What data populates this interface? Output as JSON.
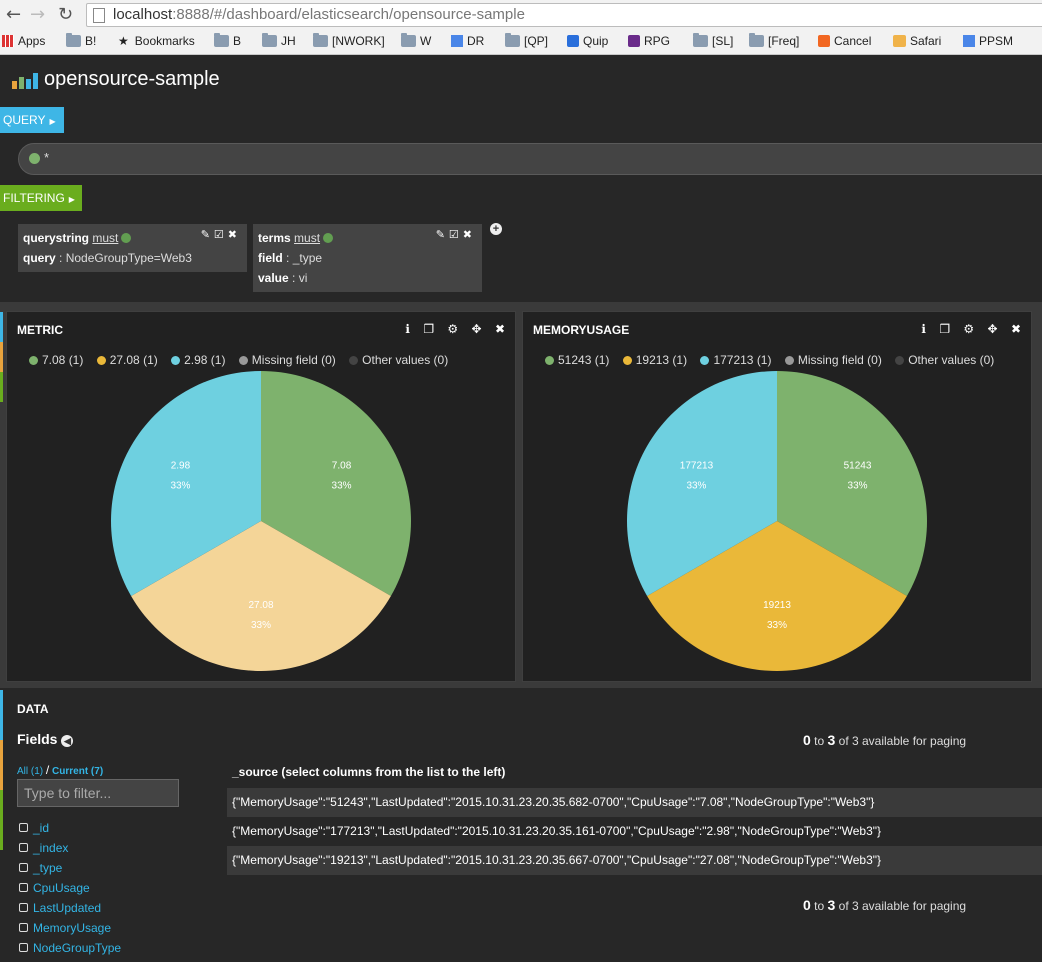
{
  "browser": {
    "url_host": "localhost",
    "url_rest": ":8888/#/dashboard/elasticsearch/opensource-sample",
    "bookmarks": [
      "Apps",
      "B!",
      "Bookmarks",
      "B",
      "JH",
      "[NWORK]",
      "W",
      "DR",
      "[QP]",
      "Quip",
      "RPG",
      "[SL]",
      "[Freq]",
      "Cancel",
      "Safari",
      "PPSM"
    ]
  },
  "app": {
    "title": "opensource-sample"
  },
  "query": {
    "label": "QUERY",
    "value": "*"
  },
  "filtering": {
    "label": "FILTERING",
    "filters": [
      {
        "type": "querystring",
        "mode": "must",
        "rows": [
          {
            "key": "query",
            "value": "NodeGroupType=Web3"
          }
        ]
      },
      {
        "type": "terms",
        "mode": "must",
        "rows": [
          {
            "key": "field",
            "value": "_type"
          },
          {
            "key": "value",
            "value": "vi"
          }
        ]
      }
    ]
  },
  "panels": [
    {
      "title": "METRIC",
      "legend": [
        "7.08 (1)",
        "27.08 (1)",
        "2.98 (1)",
        "Missing field (0)",
        "Other values (0)"
      ],
      "chart_data": {
        "type": "pie",
        "categories": [
          "7.08",
          "27.08",
          "2.98"
        ],
        "values": [
          1,
          1,
          1
        ],
        "percent_labels": [
          "33%",
          "33%",
          "33%"
        ],
        "colors": [
          "#7eb26d",
          "#f4d598",
          "#6ed0e0"
        ]
      }
    },
    {
      "title": "MEMORYUSAGE",
      "legend": [
        "51243 (1)",
        "19213 (1)",
        "177213 (1)",
        "Missing field (0)",
        "Other values (0)"
      ],
      "chart_data": {
        "type": "pie",
        "categories": [
          "51243",
          "19213",
          "177213"
        ],
        "values": [
          1,
          1,
          1
        ],
        "percent_labels": [
          "33%",
          "33%",
          "33%"
        ],
        "colors": [
          "#7eb26d",
          "#eab839",
          "#6ed0e0"
        ]
      }
    }
  ],
  "legend_colors": [
    "#7eb26d",
    "#eab839",
    "#6ed0e0",
    "#999999",
    "#444444"
  ],
  "data": {
    "title": "DATA",
    "fields_label": "Fields",
    "tab_all": "All (1)",
    "tab_sep": "/",
    "tab_current": "Current (7)",
    "filter_placeholder": "Type to filter...",
    "fields": [
      "_id",
      "_index",
      "_type",
      "CpuUsage",
      "LastUpdated",
      "MemoryUsage",
      "NodeGroupType"
    ],
    "paging_from": "0",
    "paging_to": "to",
    "paging_count": "3",
    "paging_rest": "of 3 available for paging",
    "source_header": "_source (select columns from the list to the left)",
    "rows": [
      "{\"MemoryUsage\":\"51243\",\"LastUpdated\":\"2015.10.31.23.20.35.682-0700\",\"CpuUsage\":\"7.08\",\"NodeGroupType\":\"Web3\"}",
      "{\"MemoryUsage\":\"177213\",\"LastUpdated\":\"2015.10.31.23.20.35.161-0700\",\"CpuUsage\":\"2.98\",\"NodeGroupType\":\"Web3\"}",
      "{\"MemoryUsage\":\"19213\",\"LastUpdated\":\"2015.10.31.23.20.35.667-0700\",\"CpuUsage\":\"27.08\",\"NodeGroupType\":\"Web3\"}"
    ]
  }
}
